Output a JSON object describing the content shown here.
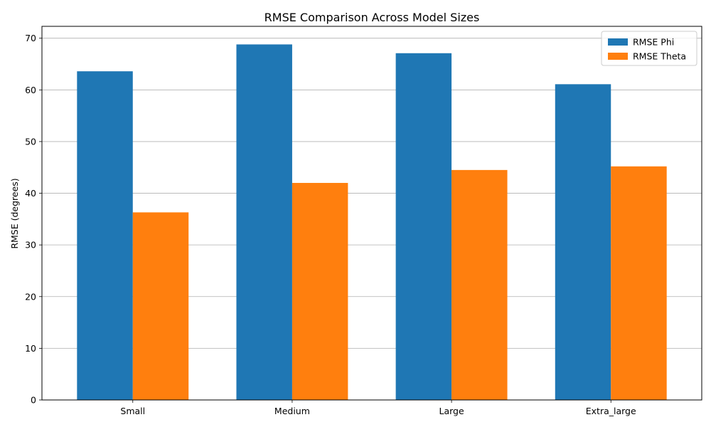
{
  "chart_data": {
    "type": "bar",
    "title": "RMSE Comparison Across Model Sizes",
    "xlabel": "",
    "ylabel": "RMSE (degrees)",
    "categories": [
      "Small",
      "Medium",
      "Large",
      "Extra_large"
    ],
    "series": [
      {
        "name": "RMSE Phi",
        "color": "#1f77b4",
        "values": [
          63.6,
          68.8,
          67.1,
          61.1
        ]
      },
      {
        "name": "RMSE Theta",
        "color": "#ff7f0e",
        "values": [
          36.3,
          42.0,
          44.5,
          45.2
        ]
      }
    ],
    "ylim": [
      0,
      72.3
    ],
    "yticks": [
      0,
      10,
      20,
      30,
      40,
      50,
      60,
      70
    ],
    "grid": "y",
    "legend_position": "top-right"
  }
}
